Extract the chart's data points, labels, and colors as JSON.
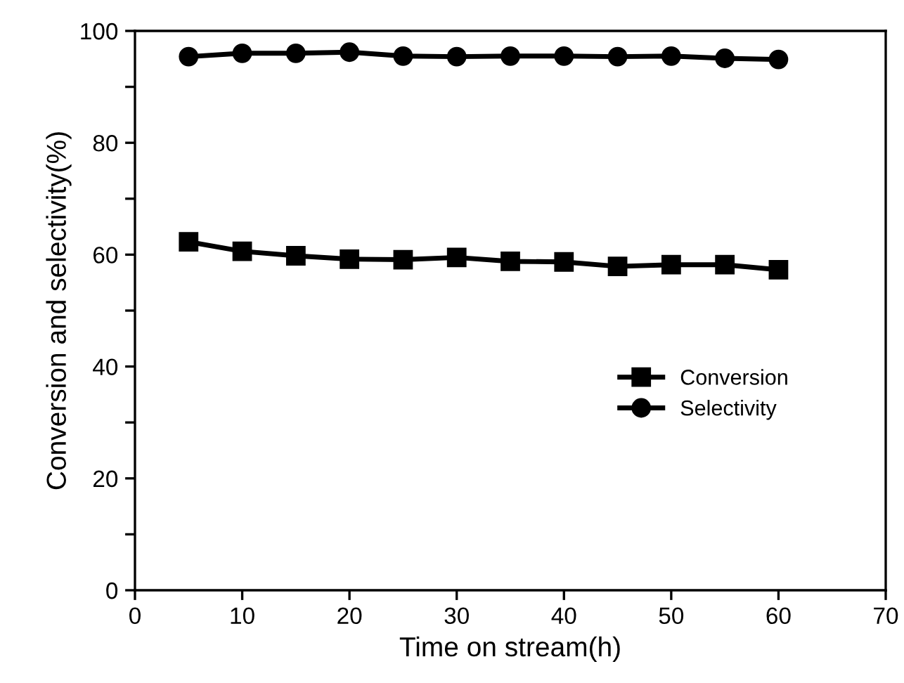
{
  "chart_data": {
    "type": "line",
    "xlabel": "Time on stream(h)",
    "ylabel": "Conversion and selectivity(%)",
    "x": [
      5,
      10,
      15,
      20,
      25,
      30,
      35,
      40,
      45,
      50,
      55,
      60
    ],
    "series": [
      {
        "name": "Conversion",
        "color": "#000000",
        "marker": "square",
        "values": [
          62.3,
          60.6,
          59.8,
          59.2,
          59.1,
          59.5,
          58.8,
          58.7,
          57.9,
          58.2,
          58.2,
          57.3
        ]
      },
      {
        "name": "Selectivity",
        "color": "#000000",
        "marker": "circle",
        "values": [
          95.4,
          96.0,
          96.0,
          96.2,
          95.5,
          95.4,
          95.5,
          95.5,
          95.4,
          95.5,
          95.1,
          94.9
        ]
      }
    ],
    "xlim": [
      0,
      70
    ],
    "xticks": [
      0,
      10,
      20,
      30,
      40,
      50,
      60,
      70
    ],
    "ylim": [
      0,
      100
    ],
    "yticks": [
      0,
      {
        "value": 10,
        "label": null
      },
      20,
      {
        "value": 30,
        "label": null
      },
      40,
      {
        "value": 50,
        "label": null
      },
      60,
      {
        "value": 70,
        "label": null
      },
      80,
      {
        "value": 90,
        "label": null
      },
      100
    ],
    "line_style": "solid",
    "grid": false,
    "legend": "right"
  }
}
